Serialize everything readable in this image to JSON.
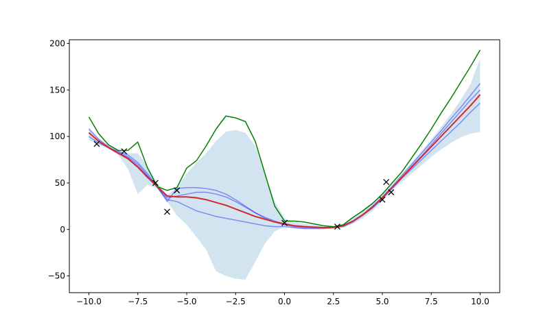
{
  "chart_data": {
    "type": "line",
    "x": [
      -10,
      -9.5,
      -9,
      -8.5,
      -8,
      -7.5,
      -7,
      -6.5,
      -6,
      -5.5,
      -5,
      -4.5,
      -4,
      -3.5,
      -3,
      -2.5,
      -2,
      -1.5,
      -1,
      -0.5,
      0,
      0.5,
      1,
      1.5,
      2,
      2.5,
      3,
      3.5,
      4,
      4.5,
      5,
      5.5,
      6,
      6.5,
      7,
      7.5,
      8,
      8.5,
      9,
      9.5,
      10
    ],
    "band": {
      "color": "#1f77b4",
      "opacity": 0.2,
      "upper": [
        110,
        98,
        90,
        85,
        82,
        82,
        68,
        50,
        37,
        45,
        60,
        72,
        82,
        95,
        105,
        107,
        104,
        90,
        60,
        30,
        12,
        8,
        6,
        5,
        4,
        3,
        6,
        13,
        21,
        29,
        38,
        49,
        60,
        72,
        84,
        97,
        110,
        124,
        139,
        156,
        184
      ],
      "lower": [
        96,
        91,
        87,
        80,
        65,
        38,
        48,
        44,
        30,
        15,
        5,
        -8,
        -22,
        -45,
        -50,
        -53,
        -54,
        -35,
        -15,
        -2,
        3,
        1,
        0,
        0,
        0,
        1,
        2,
        6,
        12,
        20,
        30,
        42,
        51,
        60,
        69,
        78,
        86,
        93,
        99,
        103,
        105
      ]
    },
    "series": [
      {
        "color": "#0000ff",
        "opacity": 0.4,
        "width": 1.5,
        "values": [
          108,
          97,
          89,
          82,
          77,
          68,
          57,
          46,
          30,
          44,
          45,
          45,
          44,
          42,
          38,
          32,
          25,
          18,
          12,
          8,
          5,
          3,
          2,
          2,
          2,
          2,
          4,
          9,
          16,
          25,
          35,
          46,
          58,
          70,
          82,
          94,
          106,
          119,
          131,
          144,
          157
        ]
      },
      {
        "color": "#0000ff",
        "opacity": 0.4,
        "width": 1.5,
        "values": [
          100,
          93,
          88,
          83,
          78,
          70,
          58,
          45,
          32,
          30,
          25,
          20,
          17,
          14,
          12,
          10,
          8,
          6,
          4,
          3,
          3,
          2,
          1,
          1,
          1,
          2,
          3,
          8,
          15,
          23,
          33,
          44,
          55,
          65,
          75,
          85,
          95,
          105,
          115,
          126,
          136
        ]
      },
      {
        "color": "#0000ff",
        "opacity": 0.4,
        "width": 1.5,
        "values": [
          104,
          95,
          88,
          84,
          80,
          72,
          60,
          46,
          34,
          36,
          38,
          40,
          40,
          38,
          35,
          30,
          24,
          18,
          13,
          9,
          6,
          4,
          3,
          2,
          2,
          2,
          4,
          9,
          16,
          24,
          34,
          45,
          56,
          68,
          79,
          91,
          103,
          115,
          127,
          139,
          150
        ]
      },
      {
        "color": "#d62728",
        "opacity": 1,
        "width": 2,
        "values": [
          104,
          95,
          88,
          82,
          76,
          67,
          56,
          46,
          36,
          35,
          35,
          34,
          32,
          29,
          26,
          22,
          18,
          14,
          11,
          8,
          6,
          4,
          3,
          2.5,
          2,
          2,
          4,
          9,
          16,
          24,
          34,
          45,
          56,
          67,
          78,
          89,
          100,
          111,
          122,
          133,
          145
        ]
      },
      {
        "color": "#008000",
        "opacity": 1,
        "width": 1.5,
        "values": [
          121,
          103,
          91,
          85,
          85,
          94,
          66,
          46,
          42,
          45,
          66,
          74,
          90,
          108,
          122,
          120,
          116,
          95,
          60,
          25,
          9,
          9,
          8,
          6,
          4,
          3,
          5,
          13,
          20,
          28,
          38,
          50,
          62,
          77,
          92,
          108,
          125,
          141,
          158,
          175,
          193
        ]
      }
    ],
    "points": {
      "color": "#000000",
      "x": [
        -9.6,
        -8.2,
        -6.6,
        -6.0,
        -5.5,
        0,
        2.7,
        5.0,
        5.2,
        5.45
      ],
      "y": [
        92,
        84,
        50,
        19,
        42,
        7,
        3,
        32,
        51,
        40
      ]
    },
    "xlim": [
      -11,
      11
    ],
    "ylim": [
      -68,
      204
    ],
    "xticks": [
      {
        "value": -10,
        "label": "−10.0"
      },
      {
        "value": -7.5,
        "label": "−7.5"
      },
      {
        "value": -5,
        "label": "−5.0"
      },
      {
        "value": -2.5,
        "label": "−2.5"
      },
      {
        "value": 0,
        "label": "0.0"
      },
      {
        "value": 2.5,
        "label": "2.5"
      },
      {
        "value": 5,
        "label": "5.0"
      },
      {
        "value": 7.5,
        "label": "7.5"
      },
      {
        "value": 10,
        "label": "10.0"
      }
    ],
    "yticks": [
      {
        "value": -50,
        "label": "−50"
      },
      0,
      50,
      100,
      150,
      200
    ]
  }
}
